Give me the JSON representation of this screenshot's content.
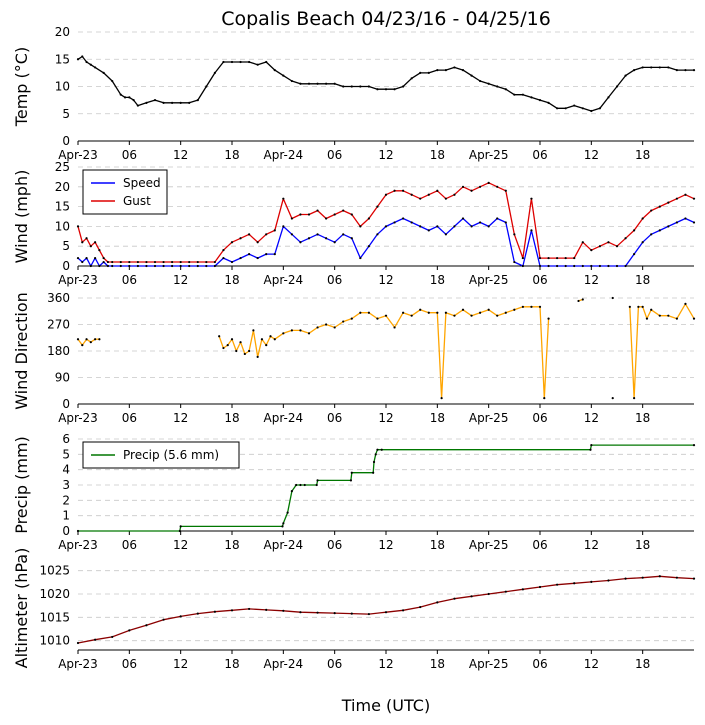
{
  "figure": {
    "title": "Copalis Beach 04/23/16 - 04/25/16",
    "xlabel": "Time (UTC)"
  },
  "chart_data": [
    {
      "type": "line",
      "id": "temp",
      "ylabel": "Temp ($^\\circ$C)",
      "ylabel_display": "Temp (°C)",
      "ylim": [
        0,
        20
      ],
      "yticks": [
        0,
        5,
        10,
        15,
        20
      ],
      "xlim": [
        0,
        72
      ],
      "xticks": [
        0,
        6,
        12,
        18,
        24,
        30,
        36,
        42,
        48,
        54,
        60,
        66
      ],
      "xtick_labels": [
        "Apr-23",
        "06",
        "12",
        "18",
        "Apr-24",
        "06",
        "12",
        "18",
        "Apr-25",
        "06",
        "12",
        "18"
      ],
      "grid": "horizontal dashed",
      "series": [
        {
          "color": "#000000",
          "x": [
            0,
            0.5,
            1,
            1.5,
            2,
            3,
            4,
            5,
            5.5,
            6,
            6.5,
            7,
            8,
            9,
            10,
            11,
            12,
            13,
            14,
            15,
            16,
            17,
            18,
            19,
            20,
            21,
            22,
            23,
            24,
            25,
            26,
            27,
            28,
            29,
            30,
            31,
            32,
            33,
            34,
            35,
            36,
            37,
            38,
            39,
            40,
            41,
            42,
            43,
            44,
            45,
            46,
            47,
            48,
            49,
            50,
            51,
            52,
            53,
            54,
            55,
            56,
            57,
            58,
            59,
            60,
            61,
            62,
            63,
            64,
            65,
            66,
            67,
            68,
            69,
            70,
            71,
            72
          ],
          "values": [
            15,
            15.5,
            14.5,
            14,
            13.5,
            12.5,
            11,
            8.5,
            8,
            8,
            7.5,
            6.5,
            7,
            7.5,
            7,
            7,
            7,
            7,
            7.5,
            10,
            12.5,
            14.5,
            14.5,
            14.5,
            14.5,
            14,
            14.5,
            13,
            12,
            11,
            10.5,
            10.5,
            10.5,
            10.5,
            10.5,
            10,
            10,
            10,
            10,
            9.5,
            9.5,
            9.5,
            10,
            11.5,
            12.5,
            12.5,
            13,
            13,
            13.5,
            13,
            12,
            11,
            10.5,
            10,
            9.5,
            8.5,
            8.5,
            8,
            7.5,
            7,
            6,
            6,
            6.5,
            6,
            5.5,
            6,
            8,
            10,
            12,
            13,
            13.5,
            13.5,
            13.5,
            13.5,
            13,
            13,
            13
          ]
        }
      ]
    },
    {
      "type": "line",
      "id": "wind",
      "ylabel": "Wind (mph)",
      "ylim": [
        0,
        25
      ],
      "yticks": [
        0,
        5,
        10,
        15,
        20,
        25
      ],
      "xlim": [
        0,
        72
      ],
      "xticks": [
        0,
        6,
        12,
        18,
        24,
        30,
        36,
        42,
        48,
        54,
        60,
        66
      ],
      "xtick_labels": [
        "Apr-23",
        "06",
        "12",
        "18",
        "Apr-24",
        "06",
        "12",
        "18",
        "Apr-25",
        "06",
        "12",
        "18"
      ],
      "grid": "horizontal dashed",
      "legend": {
        "placement": "upper-left",
        "entries": [
          "Speed",
          "Gust"
        ]
      },
      "series": [
        {
          "name": "Speed",
          "color": "#0000ff",
          "x": [
            0,
            0.5,
            1,
            1.5,
            2,
            2.5,
            3,
            3.5,
            4,
            5,
            6,
            7,
            8,
            9,
            10,
            11,
            12,
            13,
            14,
            15,
            16,
            17,
            18,
            19,
            20,
            21,
            22,
            23,
            24,
            25,
            26,
            27,
            28,
            29,
            30,
            31,
            32,
            33,
            34,
            35,
            36,
            37,
            38,
            39,
            40,
            41,
            42,
            43,
            44,
            45,
            46,
            47,
            48,
            49,
            50,
            51,
            52,
            53,
            54,
            55,
            56,
            57,
            58,
            59,
            60,
            61,
            62,
            63,
            64,
            65,
            66,
            67,
            68,
            69,
            70,
            71,
            72
          ],
          "values": [
            2,
            1,
            2,
            0,
            2,
            0,
            1,
            0,
            0,
            0,
            0,
            0,
            0,
            0,
            0,
            0,
            0,
            0,
            0,
            0,
            0,
            2,
            1,
            2,
            3,
            2,
            3,
            3,
            10,
            8,
            6,
            7,
            8,
            7,
            6,
            8,
            7,
            2,
            5,
            8,
            10,
            11,
            12,
            11,
            10,
            9,
            10,
            8,
            10,
            12,
            10,
            11,
            10,
            12,
            11,
            1,
            0,
            9,
            0,
            0,
            0,
            0,
            0,
            0,
            0,
            0,
            0,
            0,
            0,
            3,
            6,
            8,
            9,
            10,
            11,
            12,
            11
          ]
        },
        {
          "name": "Gust",
          "color": "#dd0000",
          "x": [
            0,
            0.5,
            1,
            1.5,
            2,
            2.5,
            3,
            3.5,
            4,
            5,
            6,
            7,
            8,
            9,
            10,
            11,
            12,
            13,
            14,
            15,
            16,
            17,
            18,
            19,
            20,
            21,
            22,
            23,
            24,
            25,
            26,
            27,
            28,
            29,
            30,
            31,
            32,
            33,
            34,
            35,
            36,
            37,
            38,
            39,
            40,
            41,
            42,
            43,
            44,
            45,
            46,
            47,
            48,
            49,
            50,
            51,
            52,
            53,
            54,
            55,
            56,
            57,
            58,
            59,
            60,
            61,
            62,
            63,
            64,
            65,
            66,
            67,
            68,
            69,
            70,
            71,
            72
          ],
          "values": [
            10,
            6,
            7,
            5,
            6,
            4,
            2,
            1,
            1,
            1,
            1,
            1,
            1,
            1,
            1,
            1,
            1,
            1,
            1,
            1,
            1,
            4,
            6,
            7,
            8,
            6,
            8,
            9,
            17,
            12,
            13,
            13,
            14,
            12,
            13,
            14,
            13,
            10,
            12,
            15,
            18,
            19,
            19,
            18,
            17,
            18,
            19,
            17,
            18,
            20,
            19,
            20,
            21,
            20,
            19,
            8,
            2,
            17,
            2,
            2,
            2,
            2,
            2,
            6,
            4,
            5,
            6,
            5,
            7,
            9,
            12,
            14,
            15,
            16,
            17,
            18,
            17
          ]
        }
      ]
    },
    {
      "type": "line",
      "id": "wind-direction",
      "ylabel": "Wind Direction",
      "ylim": [
        0,
        360
      ],
      "yticks": [
        0,
        90,
        180,
        270,
        360
      ],
      "xlim": [
        0,
        72
      ],
      "xticks": [
        0,
        6,
        12,
        18,
        24,
        30,
        36,
        42,
        48,
        54,
        60,
        66
      ],
      "xtick_labels": [
        "Apr-23",
        "06",
        "12",
        "18",
        "Apr-24",
        "06",
        "12",
        "18",
        "Apr-25",
        "06",
        "12",
        "18"
      ],
      "grid": "horizontal dashed",
      "series": [
        {
          "color": "#ffa500",
          "segments": [
            {
              "x": [
                0,
                0.5,
                1,
                1.5,
                2,
                2.5
              ],
              "values": [
                220,
                200,
                220,
                210,
                220,
                220
              ]
            },
            {
              "x": [
                16.5,
                17,
                17.5,
                18,
                18.5,
                19,
                19.5,
                20,
                20.5,
                21,
                21.5,
                22,
                22.5,
                23,
                24,
                25,
                26,
                27,
                28,
                29,
                30,
                31,
                32,
                33,
                34,
                35,
                36,
                37,
                38,
                39,
                40,
                41,
                42,
                42.5,
                43,
                44,
                45,
                46,
                47,
                48,
                49,
                50,
                51,
                52,
                53,
                54,
                54.5,
                55
              ],
              "values": [
                230,
                190,
                200,
                220,
                180,
                210,
                170,
                180,
                250,
                160,
                220,
                200,
                230,
                220,
                240,
                250,
                250,
                240,
                260,
                270,
                260,
                280,
                290,
                310,
                310,
                290,
                300,
                260,
                310,
                300,
                320,
                310,
                310,
                20,
                310,
                300,
                320,
                300,
                310,
                320,
                300,
                310,
                320,
                330,
                330,
                330,
                20,
                290
              ]
            },
            {
              "x": [
                58.5,
                59
              ],
              "values": [
                350,
                355
              ]
            },
            {
              "x": [
                62.5
              ],
              "values": [
                360
              ]
            },
            {
              "x": [
                62.5
              ],
              "values": [
                20
              ]
            },
            {
              "x": [
                64.5,
                65,
                65.5,
                66,
                66.5,
                67,
                68,
                69,
                70,
                71,
                72
              ],
              "values": [
                330,
                20,
                330,
                330,
                290,
                320,
                300,
                300,
                290,
                340,
                290
              ]
            }
          ]
        }
      ]
    },
    {
      "type": "line",
      "id": "precip",
      "ylabel": "Precip (mm)",
      "ylim": [
        0,
        6
      ],
      "yticks": [
        0,
        1,
        2,
        3,
        4,
        5,
        6
      ],
      "xlim": [
        0,
        72
      ],
      "xticks": [
        0,
        6,
        12,
        18,
        24,
        30,
        36,
        42,
        48,
        54,
        60,
        66
      ],
      "xtick_labels": [
        "Apr-23",
        "06",
        "12",
        "18",
        "Apr-24",
        "06",
        "12",
        "18",
        "Apr-25",
        "06",
        "12",
        "18"
      ],
      "grid": "horizontal dashed",
      "legend": {
        "placement": "upper-left",
        "entries": [
          "Precip (5.6 mm)"
        ]
      },
      "series": [
        {
          "name": "Precip (5.6 mm)",
          "color": "#007700",
          "x": [
            0,
            11.9,
            12,
            23.9,
            24,
            24.5,
            25,
            25.5,
            26,
            26.5,
            27.9,
            28,
            31.9,
            32,
            34.5,
            34.6,
            34.8,
            35,
            35.5,
            59.9,
            60,
            72
          ],
          "values": [
            0,
            0,
            0.3,
            0.3,
            0.5,
            1.2,
            2.6,
            3.0,
            3.0,
            3.0,
            3.0,
            3.3,
            3.3,
            3.8,
            3.8,
            4.5,
            5.0,
            5.3,
            5.3,
            5.3,
            5.6,
            5.6
          ]
        }
      ]
    },
    {
      "type": "line",
      "id": "altimeter",
      "ylabel": "Altimeter (hPa)",
      "ylim": [
        1008,
        1026
      ],
      "yticks": [
        1010,
        1015,
        1020,
        1025
      ],
      "xlim": [
        0,
        72
      ],
      "xticks": [
        0,
        6,
        12,
        18,
        24,
        30,
        36,
        42,
        48,
        54,
        60,
        66
      ],
      "xtick_labels": [
        "Apr-23",
        "06",
        "12",
        "18",
        "Apr-24",
        "06",
        "12",
        "18",
        "Apr-25",
        "06",
        "12",
        "18"
      ],
      "grid": "horizontal dashed",
      "series": [
        {
          "color": "#8b0000",
          "x": [
            0,
            2,
            4,
            6,
            8,
            10,
            12,
            14,
            16,
            18,
            20,
            22,
            24,
            26,
            28,
            30,
            32,
            34,
            36,
            38,
            40,
            42,
            44,
            46,
            48,
            50,
            52,
            54,
            56,
            58,
            60,
            62,
            64,
            66,
            68,
            70,
            72
          ],
          "values": [
            1009.5,
            1010.2,
            1010.8,
            1012.2,
            1013.3,
            1014.5,
            1015.2,
            1015.8,
            1016.2,
            1016.5,
            1016.8,
            1016.6,
            1016.4,
            1016.1,
            1016.0,
            1015.9,
            1015.8,
            1015.7,
            1016.1,
            1016.5,
            1017.2,
            1018.2,
            1019.0,
            1019.5,
            1020.0,
            1020.5,
            1021.0,
            1021.5,
            1022.0,
            1022.3,
            1022.6,
            1022.9,
            1023.3,
            1023.5,
            1023.8,
            1023.5,
            1023.3
          ]
        }
      ]
    }
  ]
}
